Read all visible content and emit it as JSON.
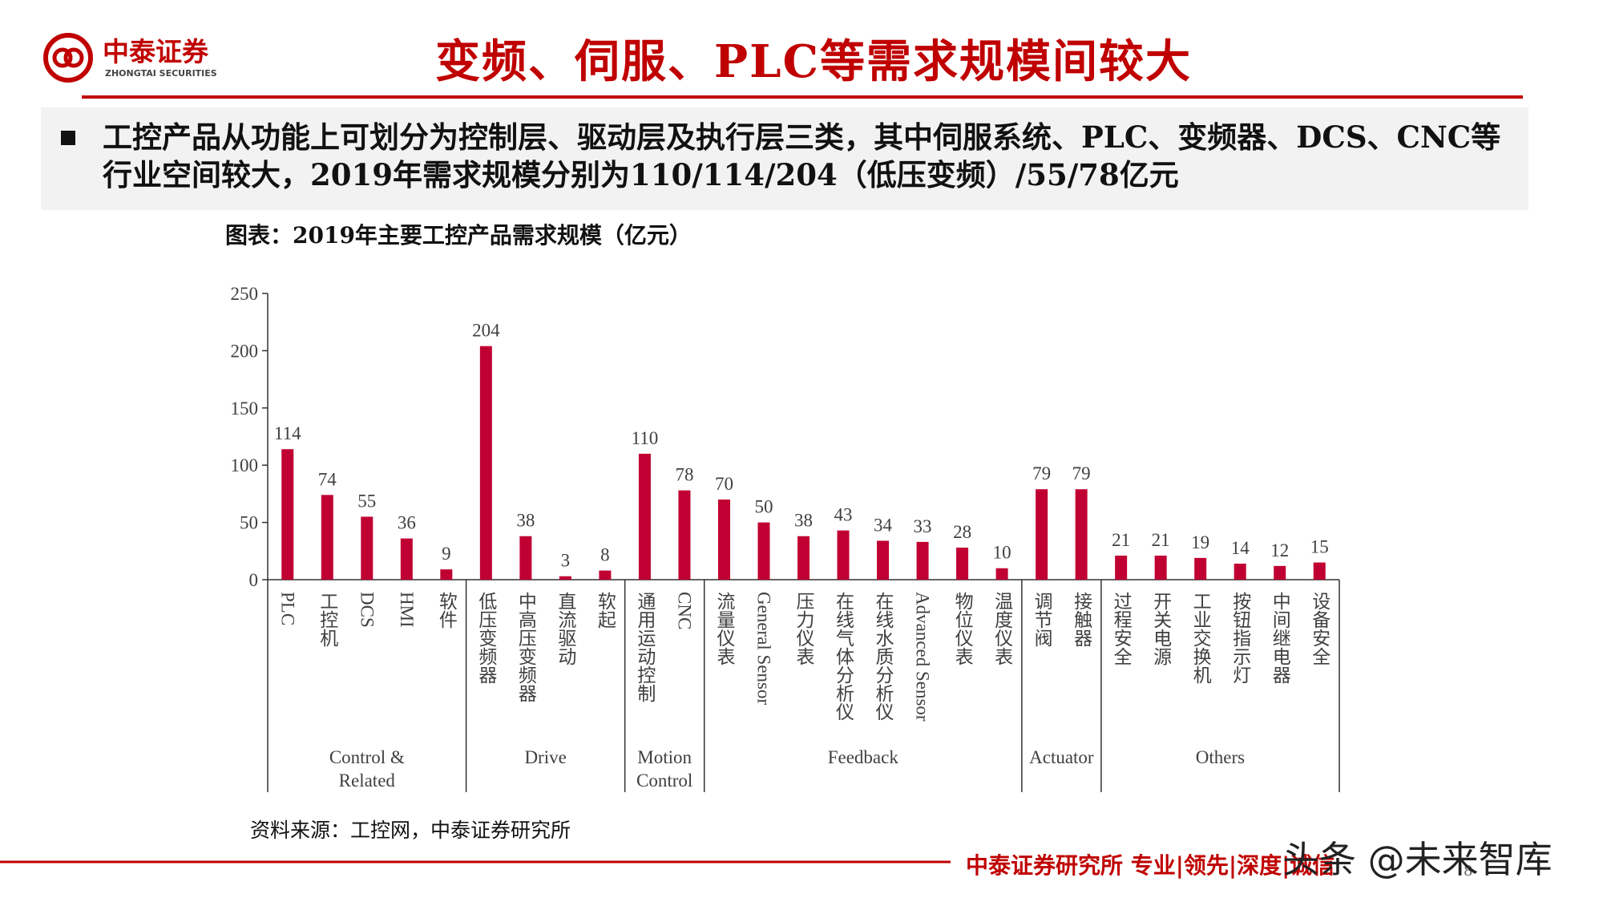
{
  "header": {
    "logo_cn": "中泰证券",
    "logo_en": "ZHONGTAI SECURITIES",
    "title": "变频、伺服、PLC等需求规模间较大"
  },
  "bullet": "工控产品从功能上可划分为控制层、驱动层及执行层三类，其中伺服系统、PLC、变频器、DCS、CNC等行业空间较大，2019年需求规模分别为110/114/204（低压变频）/55/78亿元",
  "chart_data": {
    "type": "bar",
    "title": "图表：2019年主要工控产品需求规模（亿元）",
    "color": "#c00032",
    "ylim": [
      0,
      250
    ],
    "yticks": [
      0,
      50,
      100,
      150,
      200,
      250
    ],
    "groups": [
      {
        "name": "Control & Related",
        "categories": [
          "PLC",
          "工控机",
          "DCS",
          "HMI",
          "软件"
        ],
        "values": [
          114,
          74,
          55,
          36,
          9
        ]
      },
      {
        "name": "Drive",
        "categories": [
          "低压变频器",
          "中高压变频器",
          "直流驱动",
          "软起"
        ],
        "values": [
          204,
          38,
          3,
          8
        ]
      },
      {
        "name": "Motion Control",
        "categories": [
          "通用运动控制",
          "CNC"
        ],
        "values": [
          110,
          78
        ]
      },
      {
        "name": "Feedback",
        "categories": [
          "流量仪表",
          "General Sensor",
          "压力仪表",
          "在线气体分析仪",
          "在线水质分析仪",
          "Advanced Sensor",
          "物位仪表",
          "温度仪表"
        ],
        "values": [
          70,
          50,
          38,
          43,
          34,
          33,
          28,
          10
        ]
      },
      {
        "name": "Actuator",
        "categories": [
          "调节阀",
          "接触器"
        ],
        "values": [
          79,
          79
        ]
      },
      {
        "name": "Others",
        "categories": [
          "过程安全",
          "开关电源",
          "工业交换机",
          "按钮指示灯",
          "中间继电器",
          "设备安全"
        ],
        "values": [
          21,
          21,
          19,
          14,
          12,
          15
        ]
      }
    ]
  },
  "source": "资料来源：工控网，中泰证券研究所",
  "footer": "中泰证券研究所 专业|领先|深度|诚信",
  "watermark": "头条 @未来智库",
  "page_number": "8"
}
